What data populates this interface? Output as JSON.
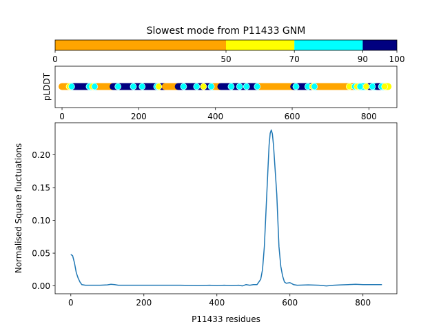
{
  "title": "Slowest mode from P11433 GNM",
  "colorbar": {
    "segments": [
      {
        "from": 0,
        "to": 50,
        "color": "#FFA500"
      },
      {
        "from": 50,
        "to": 70,
        "color": "#FFFF00"
      },
      {
        "from": 70,
        "to": 90,
        "color": "#00FFFF"
      },
      {
        "from": 90,
        "to": 100,
        "color": "#000080"
      }
    ],
    "ticks": [
      "0",
      "50",
      "70",
      "90",
      "100"
    ]
  },
  "plddt_strip": {
    "ylabel": "pLDDT",
    "xticks": [
      0,
      200,
      400,
      600,
      800
    ],
    "xlim": [
      -18,
      873
    ],
    "bands": [
      {
        "x0": 0,
        "x1": 18,
        "cat": "o"
      },
      {
        "x0": 19,
        "x1": 24,
        "cat": "y"
      },
      {
        "x0": 25,
        "x1": 30,
        "cat": "c"
      },
      {
        "x0": 31,
        "x1": 70,
        "cat": "n"
      },
      {
        "x0": 71,
        "x1": 78,
        "cat": "c"
      },
      {
        "x0": 79,
        "x1": 84,
        "cat": "y"
      },
      {
        "x0": 85,
        "x1": 92,
        "cat": "c"
      },
      {
        "x0": 93,
        "x1": 132,
        "cat": "o"
      },
      {
        "x0": 133,
        "x1": 145,
        "cat": "n"
      },
      {
        "x0": 146,
        "x1": 150,
        "cat": "c"
      },
      {
        "x0": 151,
        "x1": 185,
        "cat": "n"
      },
      {
        "x0": 186,
        "x1": 190,
        "cat": "c"
      },
      {
        "x0": 191,
        "x1": 208,
        "cat": "n"
      },
      {
        "x0": 209,
        "x1": 214,
        "cat": "c"
      },
      {
        "x0": 215,
        "x1": 246,
        "cat": "n"
      },
      {
        "x0": 247,
        "x1": 251,
        "cat": "c"
      },
      {
        "x0": 252,
        "x1": 258,
        "cat": "y"
      },
      {
        "x0": 259,
        "x1": 268,
        "cat": "n"
      },
      {
        "x0": 269,
        "x1": 302,
        "cat": "o"
      },
      {
        "x0": 303,
        "x1": 316,
        "cat": "n"
      },
      {
        "x0": 317,
        "x1": 322,
        "cat": "c"
      },
      {
        "x0": 323,
        "x1": 350,
        "cat": "n"
      },
      {
        "x0": 351,
        "x1": 355,
        "cat": "c"
      },
      {
        "x0": 356,
        "x1": 368,
        "cat": "n"
      },
      {
        "x0": 369,
        "x1": 373,
        "cat": "y"
      },
      {
        "x0": 374,
        "x1": 388,
        "cat": "n"
      },
      {
        "x0": 389,
        "x1": 396,
        "cat": "c"
      },
      {
        "x0": 397,
        "x1": 413,
        "cat": "o"
      },
      {
        "x0": 414,
        "x1": 440,
        "cat": "n"
      },
      {
        "x0": 441,
        "x1": 446,
        "cat": "c"
      },
      {
        "x0": 447,
        "x1": 462,
        "cat": "n"
      },
      {
        "x0": 463,
        "x1": 467,
        "cat": "c"
      },
      {
        "x0": 468,
        "x1": 480,
        "cat": "n"
      },
      {
        "x0": 481,
        "x1": 485,
        "cat": "c"
      },
      {
        "x0": 486,
        "x1": 508,
        "cat": "n"
      },
      {
        "x0": 509,
        "x1": 514,
        "cat": "c"
      },
      {
        "x0": 515,
        "x1": 603,
        "cat": "o"
      },
      {
        "x0": 604,
        "x1": 609,
        "cat": "n"
      },
      {
        "x0": 610,
        "x1": 614,
        "cat": "c"
      },
      {
        "x0": 615,
        "x1": 640,
        "cat": "n"
      },
      {
        "x0": 641,
        "x1": 646,
        "cat": "c"
      },
      {
        "x0": 647,
        "x1": 652,
        "cat": "n"
      },
      {
        "x0": 653,
        "x1": 657,
        "cat": "y"
      },
      {
        "x0": 658,
        "x1": 666,
        "cat": "c"
      },
      {
        "x0": 667,
        "x1": 748,
        "cat": "o"
      },
      {
        "x0": 749,
        "x1": 754,
        "cat": "y"
      },
      {
        "x0": 755,
        "x1": 762,
        "cat": "o"
      },
      {
        "x0": 763,
        "x1": 768,
        "cat": "c"
      },
      {
        "x0": 769,
        "x1": 776,
        "cat": "y"
      },
      {
        "x0": 777,
        "x1": 792,
        "cat": "c"
      },
      {
        "x0": 793,
        "x1": 800,
        "cat": "y"
      },
      {
        "x0": 801,
        "x1": 808,
        "cat": "n"
      },
      {
        "x0": 809,
        "x1": 820,
        "cat": "c"
      },
      {
        "x0": 821,
        "x1": 832,
        "cat": "n"
      },
      {
        "x0": 833,
        "x1": 840,
        "cat": "c"
      },
      {
        "x0": 841,
        "x1": 850,
        "cat": "y"
      }
    ],
    "category_colors": {
      "o": "#FFA500",
      "y": "#FFFF00",
      "c": "#00FFFF",
      "n": "#000080"
    }
  },
  "chart_data": {
    "type": "line",
    "xlabel": "P11433 residues",
    "ylabel": "Normalised Square fluctuations",
    "xlim": [
      -43,
      893
    ],
    "ylim": [
      -0.012,
      0.249
    ],
    "xticks": [
      0,
      200,
      400,
      600,
      800
    ],
    "yticks": [
      0.0,
      0.05,
      0.1,
      0.15,
      0.2
    ],
    "ytick_labels": [
      "0.00",
      "0.05",
      "0.10",
      "0.15",
      "0.20"
    ],
    "series": [
      {
        "color": "#1f77b4",
        "x": [
          0,
          5,
          10,
          15,
          20,
          25,
          30,
          40,
          60,
          80,
          100,
          110,
          120,
          130,
          150,
          200,
          250,
          300,
          350,
          380,
          400,
          420,
          440,
          460,
          470,
          480,
          490,
          500,
          510,
          520,
          525,
          530,
          535,
          540,
          543,
          546,
          549,
          552,
          555,
          558,
          561,
          564,
          567,
          570,
          575,
          580,
          585,
          590,
          600,
          610,
          620,
          650,
          680,
          700,
          720,
          740,
          760,
          780,
          800,
          830,
          852
        ],
        "y": [
          0.048,
          0.046,
          0.035,
          0.02,
          0.012,
          0.006,
          0.002,
          0.001,
          0.001,
          0.001,
          0.0015,
          0.0025,
          0.002,
          0.001,
          0.001,
          0.001,
          0.001,
          0.001,
          0.0005,
          0.001,
          0.0005,
          0.001,
          0.0005,
          0.001,
          0.0,
          0.002,
          0.001,
          0.002,
          0.002,
          0.01,
          0.025,
          0.06,
          0.12,
          0.18,
          0.215,
          0.233,
          0.238,
          0.232,
          0.215,
          0.19,
          0.165,
          0.14,
          0.1,
          0.06,
          0.03,
          0.015,
          0.006,
          0.004,
          0.005,
          0.002,
          0.001,
          0.0015,
          0.001,
          0.0,
          0.001,
          0.0015,
          0.002,
          0.0025,
          0.002,
          0.002,
          0.002
        ]
      }
    ]
  }
}
